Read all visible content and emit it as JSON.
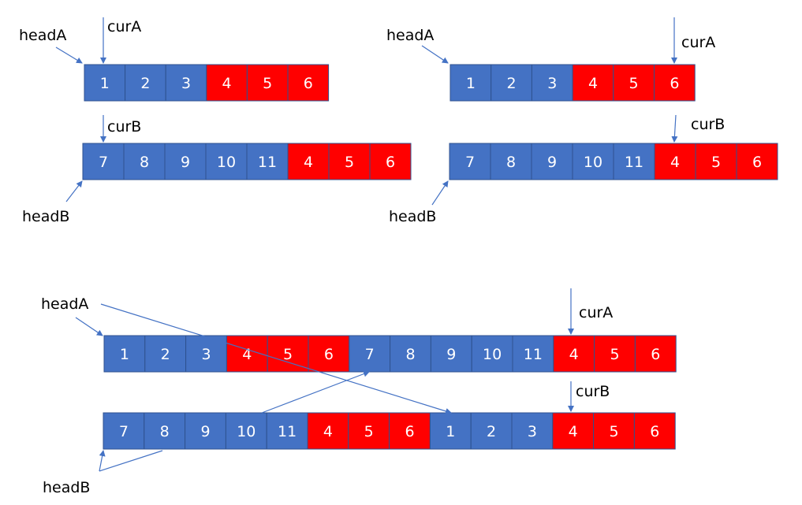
{
  "colors": {
    "blue": "#4472C4",
    "red": "#FF0000",
    "border": "#2F528F",
    "arrow": "#4472C4"
  },
  "diagram": {
    "top_left": {
      "list_a": {
        "cells": [
          {
            "value": "1",
            "color": "blue"
          },
          {
            "value": "2",
            "color": "blue"
          },
          {
            "value": "3",
            "color": "blue"
          },
          {
            "value": "4",
            "color": "red"
          },
          {
            "value": "5",
            "color": "red"
          },
          {
            "value": "6",
            "color": "red"
          }
        ]
      },
      "list_b": {
        "cells": [
          {
            "value": "7",
            "color": "blue"
          },
          {
            "value": "8",
            "color": "blue"
          },
          {
            "value": "9",
            "color": "blue"
          },
          {
            "value": "10",
            "color": "blue"
          },
          {
            "value": "11",
            "color": "blue"
          },
          {
            "value": "4",
            "color": "red"
          },
          {
            "value": "5",
            "color": "red"
          },
          {
            "value": "6",
            "color": "red"
          }
        ]
      },
      "labels": {
        "head_a": "headA",
        "cur_a": "curA",
        "cur_b": "curB",
        "head_b": "headB"
      }
    },
    "top_right": {
      "list_a": {
        "cells": [
          {
            "value": "1",
            "color": "blue"
          },
          {
            "value": "2",
            "color": "blue"
          },
          {
            "value": "3",
            "color": "blue"
          },
          {
            "value": "4",
            "color": "red"
          },
          {
            "value": "5",
            "color": "red"
          },
          {
            "value": "6",
            "color": "red"
          }
        ]
      },
      "list_b": {
        "cells": [
          {
            "value": "7",
            "color": "blue"
          },
          {
            "value": "8",
            "color": "blue"
          },
          {
            "value": "9",
            "color": "blue"
          },
          {
            "value": "10",
            "color": "blue"
          },
          {
            "value": "11",
            "color": "blue"
          },
          {
            "value": "4",
            "color": "red"
          },
          {
            "value": "5",
            "color": "red"
          },
          {
            "value": "6",
            "color": "red"
          }
        ]
      },
      "labels": {
        "head_a": "headA",
        "cur_a": "curA",
        "cur_b": "curB",
        "head_b": "headB"
      }
    },
    "bottom": {
      "list_a": {
        "cells": [
          {
            "value": "1",
            "color": "blue"
          },
          {
            "value": "2",
            "color": "blue"
          },
          {
            "value": "3",
            "color": "blue"
          },
          {
            "value": "4",
            "color": "red"
          },
          {
            "value": "5",
            "color": "red"
          },
          {
            "value": "6",
            "color": "red"
          },
          {
            "value": "7",
            "color": "blue"
          },
          {
            "value": "8",
            "color": "blue"
          },
          {
            "value": "9",
            "color": "blue"
          },
          {
            "value": "10",
            "color": "blue"
          },
          {
            "value": "11",
            "color": "blue"
          },
          {
            "value": "4",
            "color": "red"
          },
          {
            "value": "5",
            "color": "red"
          },
          {
            "value": "6",
            "color": "red"
          }
        ]
      },
      "list_b": {
        "cells": [
          {
            "value": "7",
            "color": "blue"
          },
          {
            "value": "8",
            "color": "blue"
          },
          {
            "value": "9",
            "color": "blue"
          },
          {
            "value": "10",
            "color": "blue"
          },
          {
            "value": "11",
            "color": "blue"
          },
          {
            "value": "4",
            "color": "red"
          },
          {
            "value": "5",
            "color": "red"
          },
          {
            "value": "6",
            "color": "red"
          },
          {
            "value": "1",
            "color": "blue"
          },
          {
            "value": "2",
            "color": "blue"
          },
          {
            "value": "3",
            "color": "blue"
          },
          {
            "value": "4",
            "color": "red"
          },
          {
            "value": "5",
            "color": "red"
          },
          {
            "value": "6",
            "color": "red"
          }
        ]
      },
      "labels": {
        "head_a": "headA",
        "cur_a": "curA",
        "cur_b": "curB",
        "head_b": "headB"
      }
    }
  }
}
